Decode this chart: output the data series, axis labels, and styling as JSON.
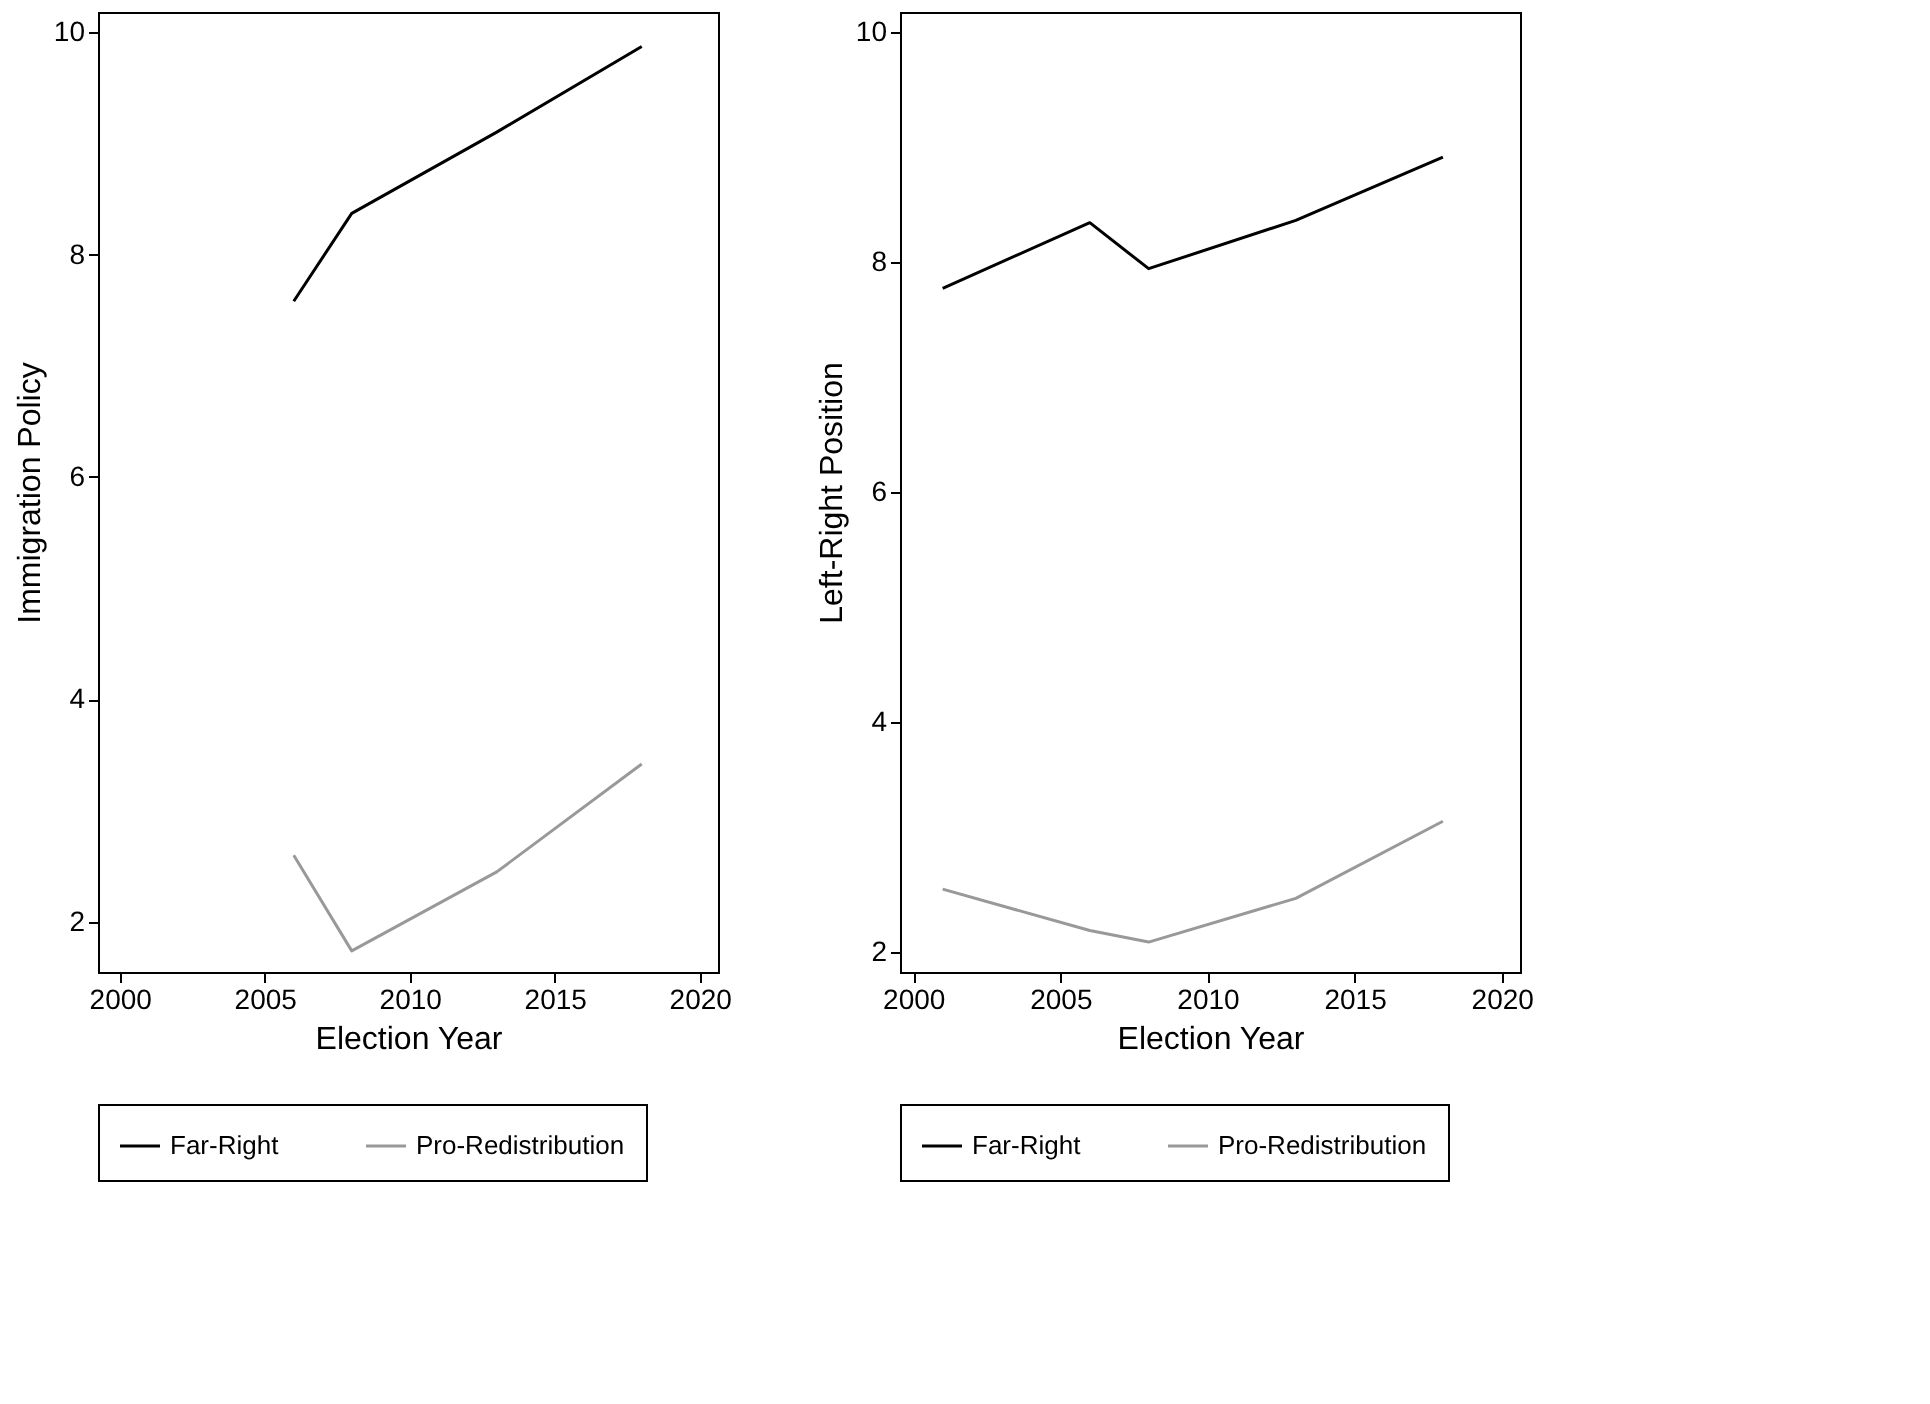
{
  "chart_data": [
    {
      "type": "line",
      "xlabel": "Election Year",
      "ylabel": "Immigration Policy",
      "x": [
        2006,
        2008,
        2013,
        2018
      ],
      "series": [
        {
          "name": "Far-Right",
          "color": "#000000",
          "values": [
            7.58,
            8.37,
            9.1,
            9.87
          ]
        },
        {
          "name": "Pro-Redistribution",
          "color": "#999999",
          "values": [
            2.6,
            1.74,
            2.45,
            3.42
          ]
        }
      ],
      "xlim": [
        1999.25,
        2020.63
      ],
      "xticks": [
        2000,
        2005,
        2010,
        2015,
        2020
      ],
      "ylim": [
        1.55,
        10.18
      ],
      "yticks": [
        2,
        4,
        6,
        8,
        10
      ],
      "grid": false,
      "legend": "bottom",
      "line_style": "solid"
    },
    {
      "type": "line",
      "xlabel": "Election Year",
      "ylabel": "Left-Right Position",
      "x": [
        2001,
        2006,
        2008,
        2013,
        2018
      ],
      "series": [
        {
          "name": "Far-Right",
          "color": "#000000",
          "values": [
            7.77,
            8.34,
            7.94,
            8.36,
            8.91
          ]
        },
        {
          "name": "Pro-Redistribution",
          "color": "#999999",
          "values": [
            2.55,
            2.19,
            2.09,
            2.47,
            3.14
          ]
        }
      ],
      "xlim": [
        1999.55,
        2020.62
      ],
      "xticks": [
        2000,
        2005,
        2010,
        2015,
        2020
      ],
      "ylim": [
        1.83,
        10.17
      ],
      "yticks": [
        2,
        4,
        6,
        8,
        10
      ],
      "grid": false,
      "legend": "bottom",
      "line_style": "solid"
    }
  ]
}
